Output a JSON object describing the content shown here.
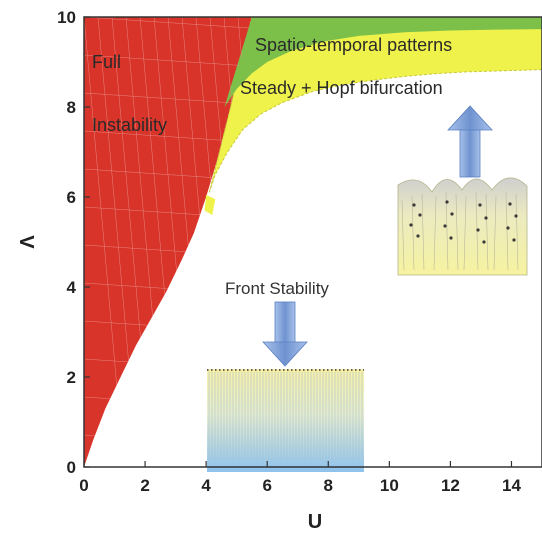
{
  "chart_data": {
    "type": "area",
    "xlabel": "U",
    "ylabel": "Λ",
    "xlim": [
      0,
      15
    ],
    "ylim": [
      0,
      10
    ],
    "xticks": [
      0,
      2,
      4,
      6,
      8,
      10,
      12,
      14
    ],
    "yticks": [
      0,
      2,
      4,
      6,
      8,
      10
    ],
    "grid": false,
    "regions": [
      {
        "label_lines": [
          "Full",
          "Instability"
        ],
        "color": "#d8342a",
        "boundary": {
          "x": [
            0,
            0.3,
            0.7,
            1.2,
            1.7,
            2.2,
            2.7,
            3.2,
            3.6,
            4.0,
            4.4,
            4.8,
            5.2,
            5.5
          ],
          "y": [
            0,
            0.6,
            1.3,
            2.0,
            2.7,
            3.3,
            3.9,
            4.6,
            5.2,
            6.0,
            6.9,
            8.0,
            9.2,
            10
          ]
        }
      },
      {
        "label_lines": [
          "Steady + Hopf bifurcation"
        ],
        "color": "#eff24a",
        "boundary": {
          "x": [
            4.1,
            4.3,
            4.7,
            5.2,
            5.8,
            6.5,
            7.5,
            8.5,
            9.5,
            10.5,
            11.5,
            12.5,
            13.5,
            14.5,
            15.0
          ],
          "y": [
            6.1,
            6.5,
            7.0,
            7.5,
            7.85,
            8.1,
            8.35,
            8.5,
            8.6,
            8.68,
            8.74,
            8.78,
            8.8,
            8.82,
            8.83
          ]
        }
      },
      {
        "label_lines": [
          "Spatio-temporal patterns"
        ],
        "color": "#7cc04a",
        "boundary": {
          "x": [
            4.6,
            5.0,
            5.5,
            6.0,
            6.8,
            7.8,
            9.0,
            10.5,
            12.0,
            13.5,
            15.0
          ],
          "y": [
            8.0,
            8.4,
            8.75,
            9.0,
            9.25,
            9.45,
            9.58,
            9.66,
            9.7,
            9.72,
            9.73
          ]
        }
      }
    ],
    "annotations": [
      {
        "text": "Front  Stability"
      }
    ]
  },
  "colors": {
    "red_region": "#d8342a",
    "yellow_region": "#eff24a",
    "green_region": "#7cc04a",
    "arrow": "#7d9fd6"
  }
}
